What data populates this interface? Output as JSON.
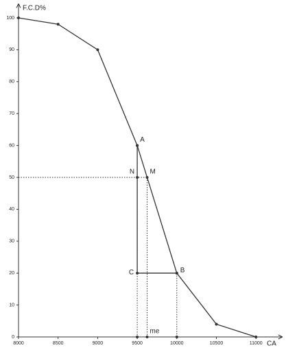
{
  "chart_data": {
    "type": "line",
    "y_label": "F.C.D%",
    "x_label": "CA",
    "x": [
      8000,
      8500,
      9000,
      9500,
      10000,
      10500,
      11000
    ],
    "series": [
      {
        "color": "#333333",
        "values": [
          100,
          98,
          90,
          60,
          20,
          4,
          0
        ]
      }
    ],
    "xlim": [
      8000,
      11300
    ],
    "ylim": [
      0,
      104
    ],
    "xticks": [
      8000,
      8500,
      9000,
      9500,
      10000,
      10500,
      11000
    ],
    "yticks": [
      0,
      10,
      20,
      30,
      40,
      50,
      60,
      70,
      80,
      90,
      100
    ],
    "points": [
      {
        "label": "A",
        "x": 9500,
        "y": 60,
        "label_pos": "ne"
      },
      {
        "label": "M",
        "x": 9625,
        "y": 50,
        "label_pos": "ne"
      },
      {
        "label": "N",
        "x": 9500,
        "y": 50,
        "label_pos": "nw"
      },
      {
        "label": "C",
        "x": 9500,
        "y": 20,
        "label_pos": "w"
      },
      {
        "label": "B",
        "x": 10000,
        "y": 20,
        "label_pos": "e"
      },
      {
        "label": "me",
        "x": 9625,
        "y": 0,
        "label_pos": "ne"
      },
      {
        "x": 9500,
        "y": 0
      },
      {
        "x": 10000,
        "y": 0
      }
    ],
    "segments": [
      {
        "x1": 9500,
        "y1": 60,
        "x2": 9500,
        "y2": 20,
        "style": "solid"
      },
      {
        "x1": 9500,
        "y1": 20,
        "x2": 10000,
        "y2": 20,
        "style": "solid"
      },
      {
        "x1": 8000,
        "y1": 50,
        "x2": 9625,
        "y2": 50,
        "style": "dotted"
      },
      {
        "x1": 9500,
        "y1": 50,
        "x2": 9500,
        "y2": 0,
        "style": "dotted"
      },
      {
        "x1": 9625,
        "y1": 50,
        "x2": 9625,
        "y2": 0,
        "style": "dotted"
      },
      {
        "x1": 10000,
        "y1": 20,
        "x2": 10000,
        "y2": 0,
        "style": "dotted"
      }
    ]
  }
}
